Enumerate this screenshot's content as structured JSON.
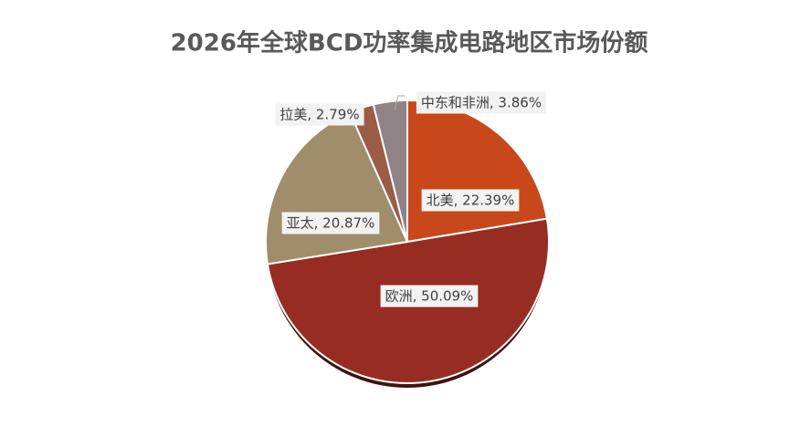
{
  "chart_data": {
    "type": "pie",
    "title": "2026年全球BCD功率集成电路地区市场份额",
    "categories": [
      "北美",
      "欧洲",
      "亚太",
      "拉美",
      "中东和非洲"
    ],
    "values": [
      22.39,
      50.09,
      20.87,
      2.79,
      3.86
    ],
    "value_labels": [
      "北美, 22.39%",
      "欧洲, 50.09%",
      "亚太, 20.87%",
      "拉美, 2.79%",
      "中东和非洲, 3.86%"
    ],
    "colors": [
      "#c8481c",
      "#972d22",
      "#a08d6b",
      "#9b5c48",
      "#8f8385"
    ]
  }
}
